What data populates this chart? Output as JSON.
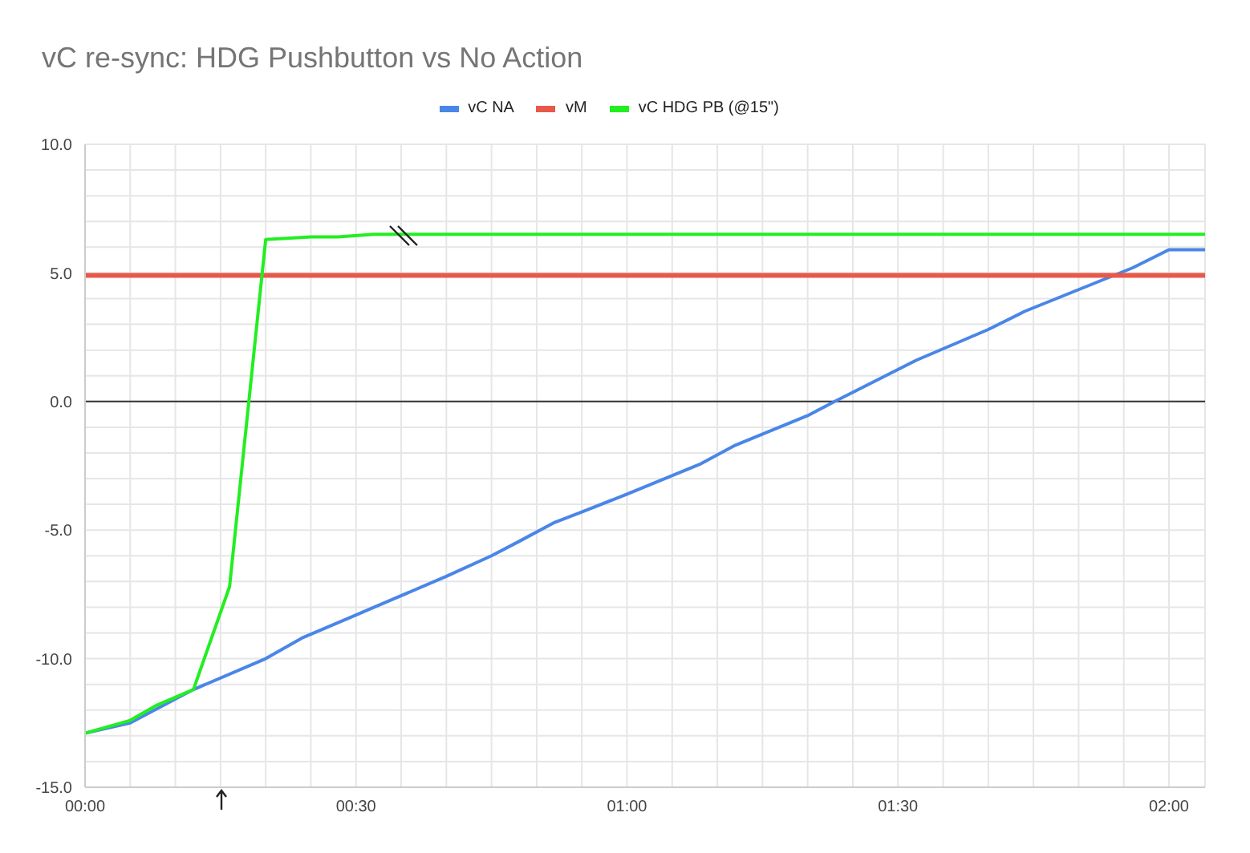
{
  "chart_data": {
    "type": "line",
    "title": "vC re-sync: HDG Pushbutton vs No Action",
    "legend": "top",
    "series": [
      {
        "name": "vC NA",
        "color": "#4a86e8",
        "x": [
          0,
          5,
          12,
          20,
          24,
          30,
          33,
          40,
          45,
          48,
          52,
          55,
          60,
          68,
          72,
          80,
          83,
          92,
          100,
          104,
          116,
          120,
          124
        ],
        "values": [
          -12.9,
          -12.5,
          -11.2,
          -10.0,
          -9.2,
          -8.3,
          -7.85,
          -6.8,
          -6.0,
          -5.45,
          -4.7,
          -4.3,
          -3.6,
          -2.45,
          -1.7,
          -0.55,
          0,
          1.6,
          2.8,
          3.5,
          5.2,
          5.9,
          5.9
        ]
      },
      {
        "name": "vM",
        "color": "#e8594a",
        "x": [
          0,
          124
        ],
        "values": [
          4.9,
          4.9
        ]
      },
      {
        "name": "vC HDG PB (@15\")",
        "color": "#22ee22",
        "x": [
          0,
          5,
          8,
          12,
          16,
          20,
          25,
          28,
          32,
          124
        ],
        "values": [
          -12.9,
          -12.4,
          -11.8,
          -11.2,
          -7.2,
          6.3,
          6.4,
          6.4,
          6.5,
          6.5
        ]
      }
    ],
    "xlim": [
      0,
      124
    ],
    "xticks": [
      {
        "value": 0,
        "label": "00:00"
      },
      {
        "value": 5,
        "label": null
      },
      {
        "value": 10,
        "label": null
      },
      {
        "value": 15,
        "label": null
      },
      {
        "value": 20,
        "label": null
      },
      {
        "value": 25,
        "label": null
      },
      {
        "value": 30,
        "label": "00:30"
      },
      {
        "value": 35,
        "label": null
      },
      {
        "value": 40,
        "label": null
      },
      {
        "value": 45,
        "label": null
      },
      {
        "value": 50,
        "label": null
      },
      {
        "value": 55,
        "label": null
      },
      {
        "value": 60,
        "label": "01:00"
      },
      {
        "value": 65,
        "label": null
      },
      {
        "value": 70,
        "label": null
      },
      {
        "value": 75,
        "label": null
      },
      {
        "value": 80,
        "label": null
      },
      {
        "value": 85,
        "label": null
      },
      {
        "value": 90,
        "label": "01:30"
      },
      {
        "value": 95,
        "label": null
      },
      {
        "value": 100,
        "label": null
      },
      {
        "value": 105,
        "label": null
      },
      {
        "value": 110,
        "label": null
      },
      {
        "value": 115,
        "label": null
      },
      {
        "value": 120,
        "label": "02:00"
      }
    ],
    "ylim": [
      -15,
      10
    ],
    "yticks": [
      {
        "value": -15,
        "label": "-15.0"
      },
      {
        "value": -14,
        "label": null
      },
      {
        "value": -13,
        "label": null
      },
      {
        "value": -12,
        "label": null
      },
      {
        "value": -11,
        "label": null
      },
      {
        "value": -10,
        "label": "-10.0"
      },
      {
        "value": -9,
        "label": null
      },
      {
        "value": -8,
        "label": null
      },
      {
        "value": -7,
        "label": null
      },
      {
        "value": -6,
        "label": null
      },
      {
        "value": -5,
        "label": "-5.0"
      },
      {
        "value": -4,
        "label": null
      },
      {
        "value": -3,
        "label": null
      },
      {
        "value": -2,
        "label": null
      },
      {
        "value": -1,
        "label": null
      },
      {
        "value": 0,
        "label": "0.0"
      },
      {
        "value": 1,
        "label": null
      },
      {
        "value": 2,
        "label": null
      },
      {
        "value": 3,
        "label": null
      },
      {
        "value": 4,
        "label": null
      },
      {
        "value": 5,
        "label": "5.0"
      },
      {
        "value": 6,
        "label": null
      },
      {
        "value": 7,
        "label": null
      },
      {
        "value": 8,
        "label": null
      },
      {
        "value": 9,
        "label": null
      },
      {
        "value": 10,
        "label": "10.0"
      }
    ],
    "grid": true,
    "marker": "none",
    "line_style": "solid",
    "ref_lines": [
      {
        "axis": "y",
        "value": 0,
        "label": null,
        "color": "#333333"
      }
    ]
  }
}
